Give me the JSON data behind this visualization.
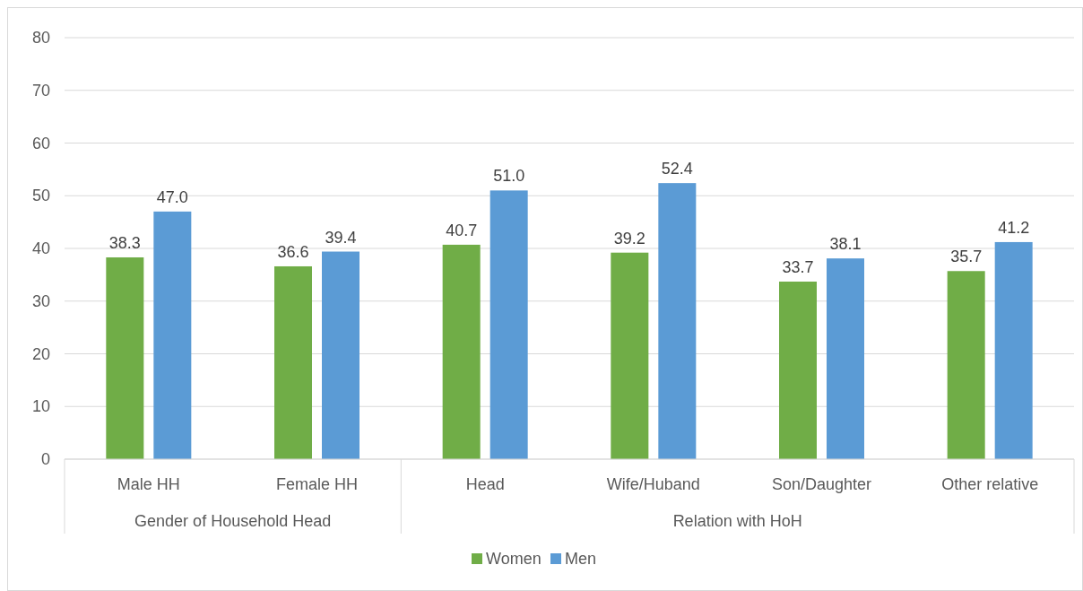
{
  "chart_data": {
    "type": "bar",
    "categories": [
      "Male HH",
      "Female HH",
      "Head",
      "Wife/Huband",
      "Son/Daughter",
      "Other relative"
    ],
    "series": [
      {
        "name": "Women",
        "color": "#70ad47",
        "values": [
          38.3,
          36.6,
          40.7,
          39.2,
          33.7,
          35.7
        ],
        "value_labels": [
          "38.3",
          "36.6",
          "40.7",
          "39.2",
          "33.7",
          "35.7"
        ]
      },
      {
        "name": "Men",
        "color": "#5b9bd5",
        "values": [
          47.0,
          39.4,
          51.0,
          52.4,
          38.1,
          41.2
        ],
        "value_labels": [
          "47.0",
          "39.4",
          "51.0",
          "52.4",
          "38.1",
          "41.2"
        ]
      }
    ],
    "ylim": [
      0,
      80
    ],
    "yticks": [
      0,
      10,
      20,
      30,
      40,
      50,
      60,
      70,
      80
    ],
    "grid": "y",
    "legend": "bottom",
    "annotations": [
      "Gender of Household Head",
      "Relation with HoH"
    ]
  }
}
